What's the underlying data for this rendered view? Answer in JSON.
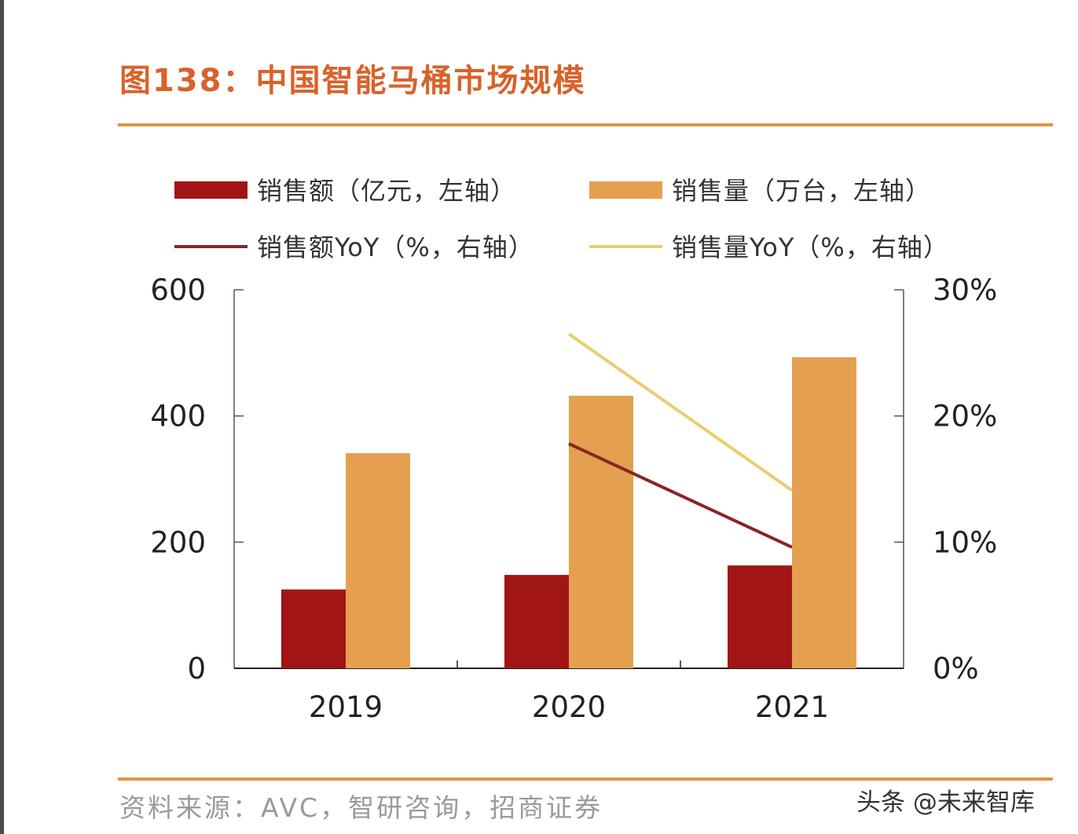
{
  "title": "图138：中国智能马桶市场规模",
  "chart_data": {
    "type": "bar",
    "categories": [
      "2019",
      "2020",
      "2021"
    ],
    "series": [
      {
        "name": "销售额（亿元，左轴）",
        "kind": "bar",
        "axis": "left",
        "color": "#a11514",
        "values": [
          125,
          148,
          163
        ]
      },
      {
        "name": "销售量（万台，左轴）",
        "kind": "bar",
        "axis": "left",
        "color": "#e4a04e",
        "values": [
          341,
          432,
          493
        ]
      },
      {
        "name": "销售额YoY（%，右轴）",
        "kind": "line",
        "axis": "right",
        "color": "#8b2424",
        "values": [
          null,
          17.8,
          9.6
        ]
      },
      {
        "name": "销售量YoY（%，右轴）",
        "kind": "line",
        "axis": "right",
        "color": "#e8cd72",
        "values": [
          null,
          26.5,
          14.1
        ]
      }
    ],
    "y_left": {
      "range": [
        0,
        600
      ],
      "ticks": [
        "0",
        "200",
        "400",
        "600"
      ],
      "tick_values": [
        0,
        200,
        400,
        600
      ]
    },
    "y_right": {
      "range": [
        0,
        30
      ],
      "ticks": [
        "0%",
        "10%",
        "20%",
        "30%"
      ],
      "tick_values": [
        0,
        10,
        20,
        30
      ]
    },
    "legend_position": "top"
  },
  "source": "资料来源：AVC，智研咨询，招商证券",
  "watermark": "头条 @未来智库"
}
